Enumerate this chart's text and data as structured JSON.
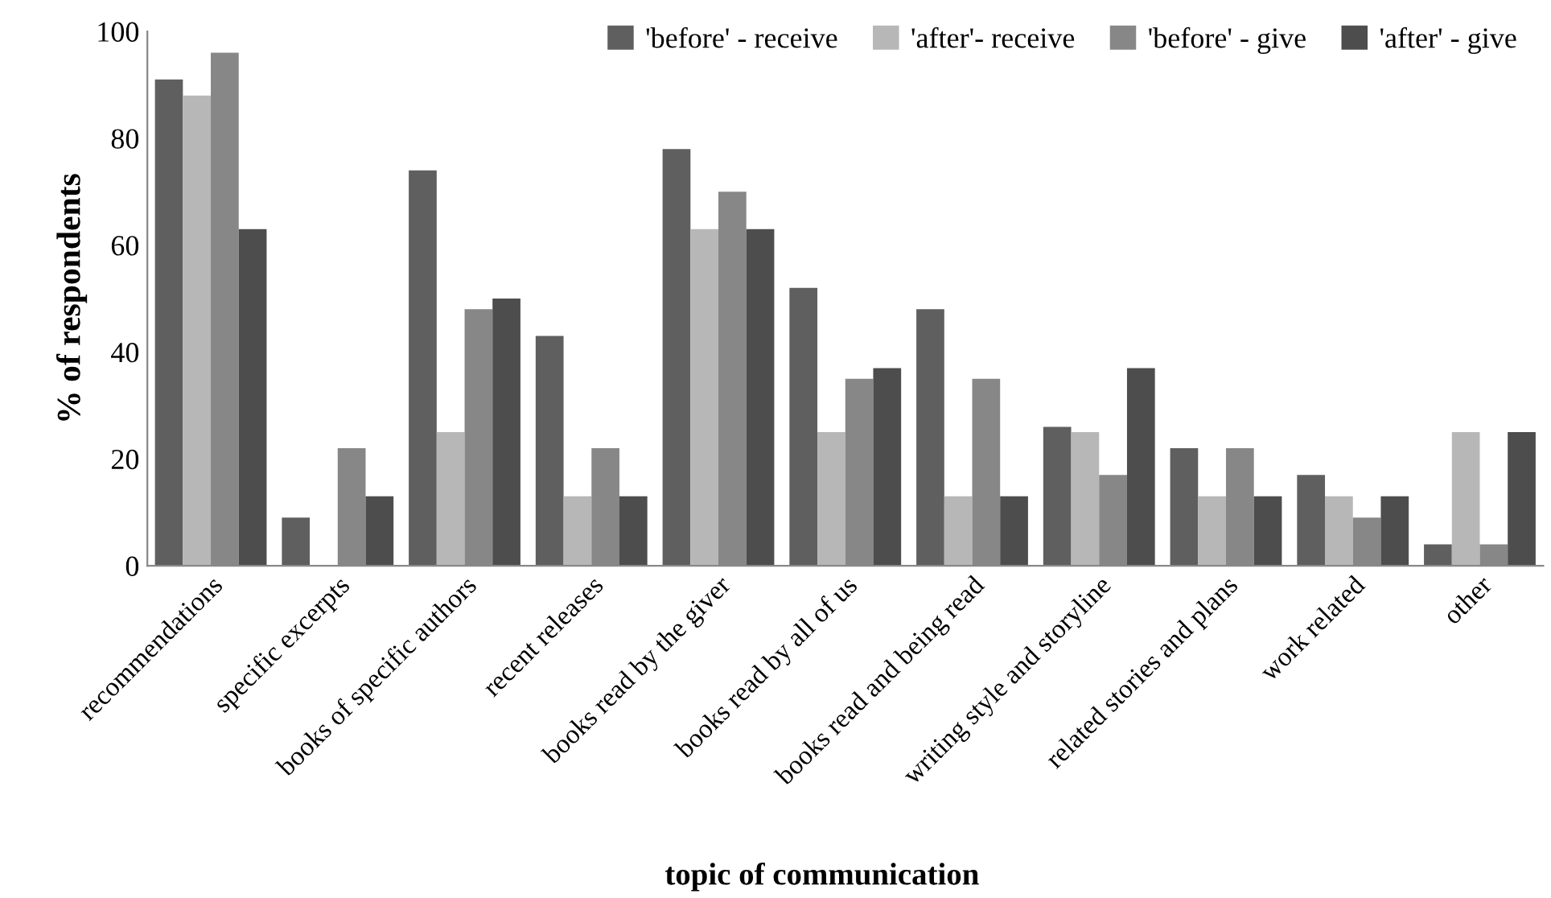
{
  "chart_data": {
    "type": "bar",
    "xlabel": "topic of communication",
    "ylabel": "% of respondents",
    "categories": [
      "recommendations",
      "specific excerpts",
      "books of specific authors",
      "recent releases",
      "books read by the giver",
      "books read by all of us",
      "books read and being read",
      "writing style and storyline",
      "related stories and plans",
      "work related",
      "other"
    ],
    "series": [
      {
        "name": "'before' - receive",
        "color": "#5f5f5f",
        "values": [
          91,
          9,
          74,
          43,
          78,
          52,
          48,
          26,
          22,
          17,
          4
        ]
      },
      {
        "name": "'after'- receive",
        "color": "#b7b7b7",
        "values": [
          88,
          0,
          25,
          13,
          63,
          25,
          13,
          25,
          13,
          13,
          25
        ]
      },
      {
        "name": "'before' - give",
        "color": "#878787",
        "values": [
          96,
          22,
          48,
          22,
          70,
          35,
          35,
          17,
          22,
          9,
          4
        ]
      },
      {
        "name": "'after' - give",
        "color": "#4d4d4d",
        "values": [
          63,
          13,
          50,
          13,
          63,
          37,
          13,
          37,
          13,
          13,
          25
        ]
      }
    ],
    "ylim": [
      0,
      100
    ],
    "yticks": [
      0,
      20,
      40,
      60,
      80,
      100
    ],
    "grid": false,
    "legend": "top right"
  }
}
